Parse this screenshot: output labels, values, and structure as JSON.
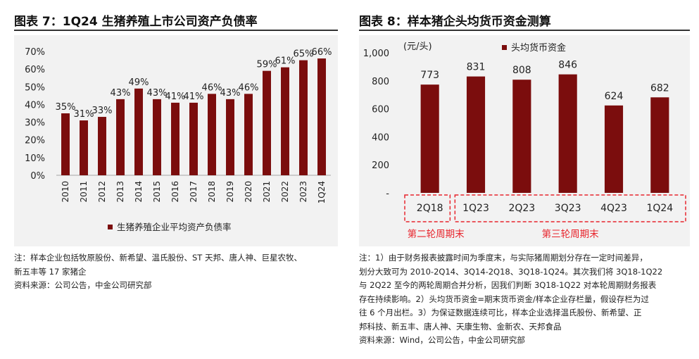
{
  "left_figure": {
    "title": "图表 7：1Q24 生猪养殖上市公司资产负债率",
    "notes": [
      "注：样本企业包括牧原股份、新希望、温氏股份、ST 天邦、唐人神、巨星农牧、",
      "新五丰等 17 家猪企",
      "资料来源：公司公告，中金公司研究部"
    ]
  },
  "right_figure": {
    "title": "图表 8：样本猪企头均货币资金测算",
    "notes": [
      "注：1）由于财务报表披露时间为季度末，与实际猪周期划分存在一定时间差异，",
      "划分大致可为 2010-2Q14、3Q14-2Q18、3Q18-1Q24。其次我们将 3Q18-1Q22",
      "与 2Q22 至今的两轮周期合并分析，因我们判断 3Q18-1Q22 对本轮周期财务报表",
      "存在持续影响。2）头均货币资金=期末货币资金/样本企业存栏量，假设存栏为过",
      "往 6 个月出栏。3）为保证数据连续可比，样本企业选择温氏股份、新希望、正",
      "邦科技、新五丰、唐人神、天康生物、金新农、天邦食品",
      "资料来源：Wind，公司公告，中金公司研究部"
    ]
  },
  "chart_data": [
    {
      "type": "bar",
      "title": "图表 7：1Q24 生猪养殖上市公司资产负债率",
      "categories": [
        "2010",
        "2011",
        "2012",
        "2013",
        "2014",
        "2015",
        "2016",
        "2017",
        "2018",
        "2019",
        "2020",
        "2021",
        "2022",
        "2023",
        "1Q24"
      ],
      "series": [
        {
          "name": "生猪养殖企业平均资产负债率",
          "values": [
            35,
            31,
            33,
            43,
            49,
            43,
            41,
            41,
            46,
            43,
            46,
            59,
            61,
            65,
            66
          ]
        }
      ],
      "data_labels": [
        "35%",
        "31%",
        "33%",
        "43%",
        "49%",
        "43%",
        "41%",
        "41%",
        "46%",
        "43%",
        "46%",
        "59%",
        "61%",
        "65%",
        "66%"
      ],
      "yticks": [
        "0%",
        "10%",
        "20%",
        "30%",
        "40%",
        "50%",
        "60%",
        "70%"
      ],
      "ylim": [
        0,
        70
      ],
      "xlabel": "",
      "ylabel": "",
      "legend_position": "bottom",
      "grid": false,
      "color": "#7B0D0D",
      "background": "#F2F2F2"
    },
    {
      "type": "bar",
      "title": "图表 8：样本猪企头均货币资金测算",
      "categories": [
        "2Q18",
        "1Q23",
        "2Q23",
        "3Q23",
        "4Q23",
        "1Q24"
      ],
      "series": [
        {
          "name": "头均货币资金",
          "values": [
            773,
            831,
            808,
            846,
            624,
            682
          ]
        }
      ],
      "data_labels": [
        "773",
        "831",
        "808",
        "846",
        "624",
        "682"
      ],
      "yticks": [
        "-",
        "200",
        "400",
        "600",
        "800",
        "1,000"
      ],
      "ylim": [
        0,
        1000
      ],
      "ylabel": "(元/头)",
      "xlabel": "",
      "legend_position": "top",
      "grid": false,
      "color": "#7B0D0D",
      "background": "#F2F2F2",
      "groups": [
        {
          "label": "第二轮周期末",
          "categories": [
            "2Q18"
          ]
        },
        {
          "label": "第三轮周期末",
          "categories": [
            "1Q23",
            "2Q23",
            "3Q23",
            "4Q23",
            "1Q24"
          ]
        }
      ],
      "group_color": "#E8242C"
    }
  ]
}
